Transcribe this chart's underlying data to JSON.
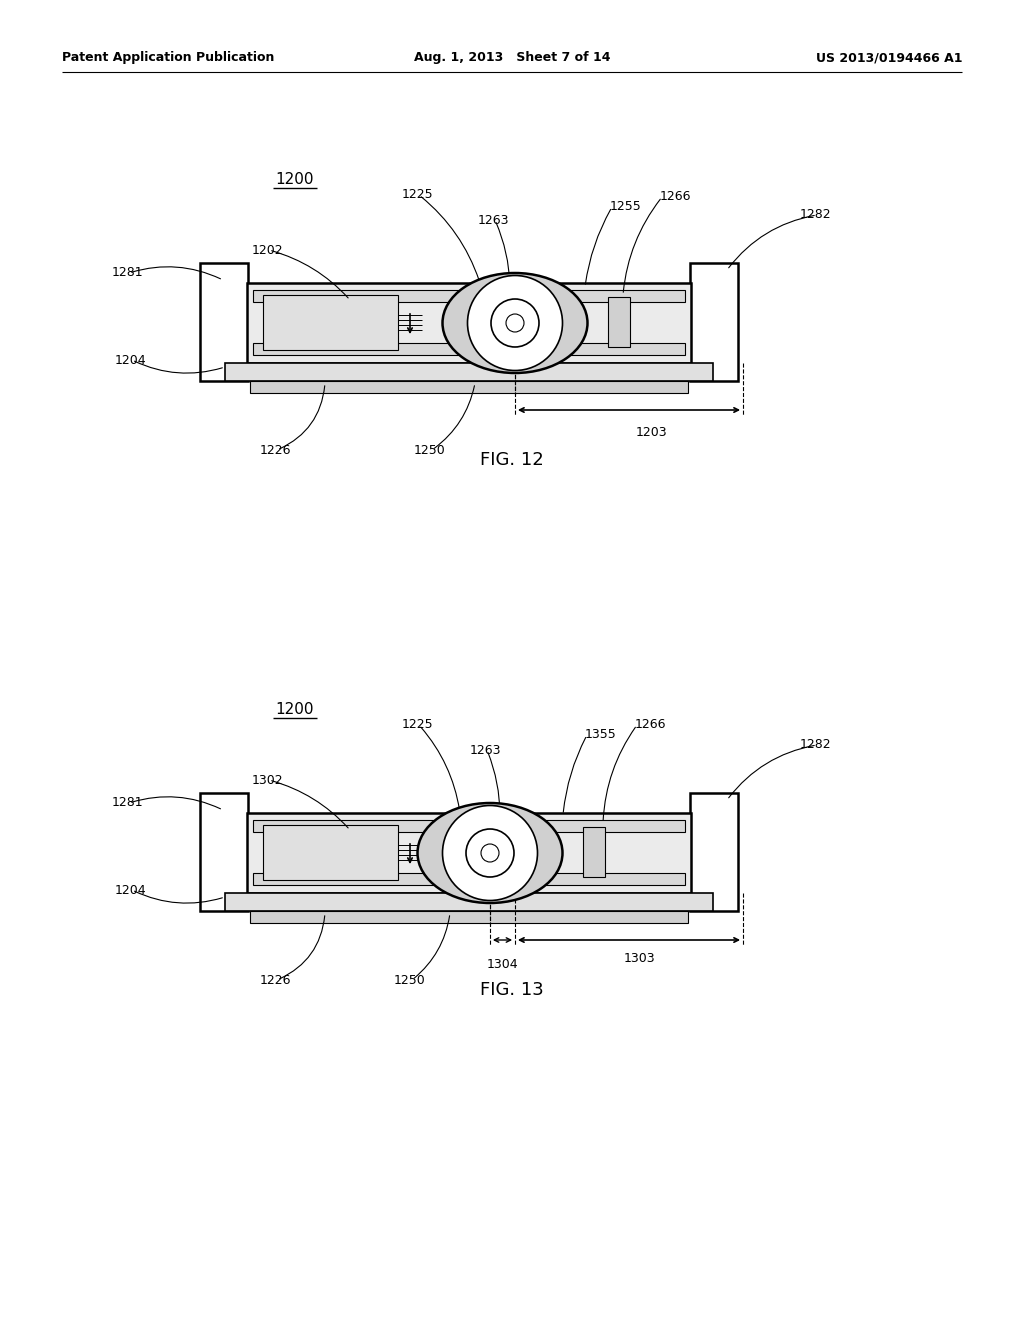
{
  "bg_color": "#ffffff",
  "line_color": "#000000",
  "header_left": "Patent Application Publication",
  "header_mid": "Aug. 1, 2013   Sheet 7 of 14",
  "header_right": "US 2013/0194466 A1",
  "fig12_label": "FIG. 12",
  "fig13_label": "FIG. 13",
  "font_size_header": 9,
  "font_size_ref": 9,
  "font_size_fig": 13,
  "font_size_title": 11
}
